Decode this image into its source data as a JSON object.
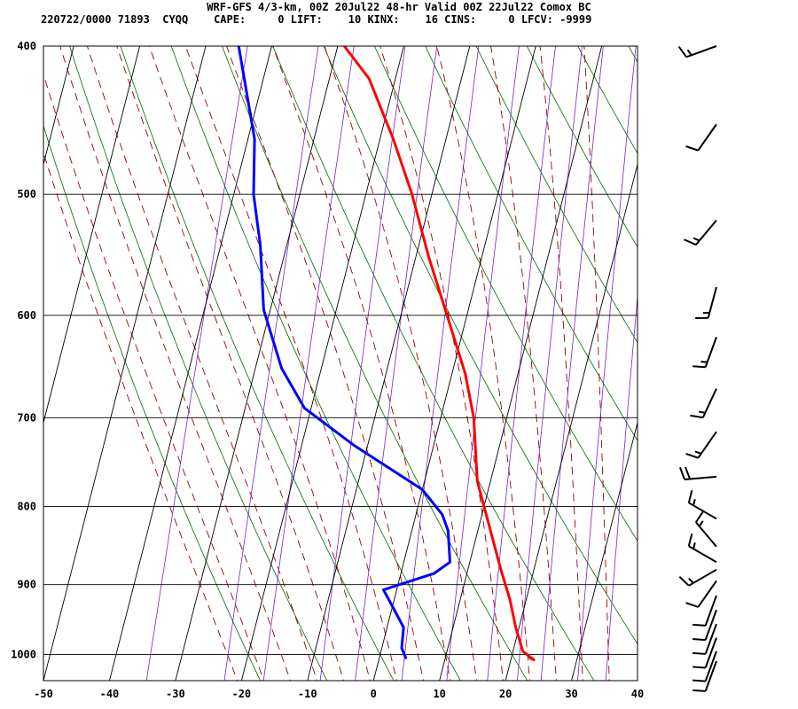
{
  "header": {
    "title": "WRF-GFS 4/3-km, 00Z 20Jul22 48-hr Valid 00Z 22Jul22 Comox BC",
    "info": "220722/0000 71893  CYQQ    CAPE:     0 LIFT:    10 KINX:    16 CINS:     0 LFCV: -9999"
  },
  "chart_data": {
    "type": "line",
    "chart_kind": "skew-T log-P sounding",
    "xlim": [
      -50,
      40
    ],
    "plim": [
      1040,
      400
    ],
    "y_scale": "log",
    "grid": true,
    "x_ticks": [
      "-50",
      "-40",
      "-30",
      "-20",
      "-10",
      "0",
      "10",
      "20",
      "30",
      "40"
    ],
    "x_tick_values": [
      -50,
      -40,
      -30,
      -20,
      -10,
      0,
      10,
      20,
      30,
      40
    ],
    "p_ticks": [
      "400",
      "500",
      "600",
      "700",
      "800",
      "900",
      "1000"
    ],
    "p_tick_values": [
      400,
      500,
      600,
      700,
      800,
      900,
      1000
    ],
    "colors": {
      "temperature": "#ff0000",
      "dewpoint": "#0000ff",
      "dry_adiabat": "#006600",
      "moist_adiabat": "#990000",
      "mixing_ratio": "#7b20c8",
      "grid": "#000000"
    },
    "series": [
      {
        "id": "temperature",
        "points": [
          [
            22.8,
            1005
          ],
          [
            23.5,
            1008
          ],
          [
            21.5,
            995
          ],
          [
            19.5,
            960
          ],
          [
            17.5,
            920
          ],
          [
            15,
            880
          ],
          [
            10,
            800
          ],
          [
            8,
            770
          ],
          [
            5,
            700
          ],
          [
            2,
            655
          ],
          [
            -3,
            600
          ],
          [
            -8,
            550
          ],
          [
            -13,
            500
          ],
          [
            -18,
            460
          ],
          [
            -24,
            420
          ],
          [
            -29,
            400
          ]
        ]
      },
      {
        "id": "dewpoint",
        "points": [
          [
            4,
            1005
          ],
          [
            3,
            990
          ],
          [
            2.5,
            960
          ],
          [
            0,
            930
          ],
          [
            -2,
            907
          ],
          [
            5,
            885
          ],
          [
            7,
            870
          ],
          [
            5.5,
            830
          ],
          [
            4,
            810
          ],
          [
            0,
            780
          ],
          [
            -12,
            730
          ],
          [
            -21,
            690
          ],
          [
            -26,
            650
          ],
          [
            -31,
            595
          ],
          [
            -34,
            540
          ],
          [
            -37,
            500
          ],
          [
            -39,
            460
          ],
          [
            -45,
            400
          ]
        ]
      }
    ],
    "wind_barbs": [
      {
        "p": 400,
        "dir_deg": 250,
        "speed_kt": 15
      },
      {
        "p": 450,
        "dir_deg": 215,
        "speed_kt": 10
      },
      {
        "p": 520,
        "dir_deg": 220,
        "speed_kt": 15
      },
      {
        "p": 575,
        "dir_deg": 195,
        "speed_kt": 15
      },
      {
        "p": 620,
        "dir_deg": 200,
        "speed_kt": 15
      },
      {
        "p": 670,
        "dir_deg": 205,
        "speed_kt": 15
      },
      {
        "p": 715,
        "dir_deg": 215,
        "speed_kt": 15
      },
      {
        "p": 765,
        "dir_deg": 265,
        "speed_kt": 20
      },
      {
        "p": 815,
        "dir_deg": 300,
        "speed_kt": 15
      },
      {
        "p": 850,
        "dir_deg": 320,
        "speed_kt": 15
      },
      {
        "p": 870,
        "dir_deg": 300,
        "speed_kt": 15
      },
      {
        "p": 880,
        "dir_deg": 240,
        "speed_kt": 15
      },
      {
        "p": 895,
        "dir_deg": 215,
        "speed_kt": 10
      },
      {
        "p": 915,
        "dir_deg": 200,
        "speed_kt": 10
      },
      {
        "p": 935,
        "dir_deg": 200,
        "speed_kt": 10
      },
      {
        "p": 955,
        "dir_deg": 200,
        "speed_kt": 10
      },
      {
        "p": 975,
        "dir_deg": 200,
        "speed_kt": 10
      },
      {
        "p": 995,
        "dir_deg": 200,
        "speed_kt": 10
      },
      {
        "p": 1010,
        "dir_deg": 200,
        "speed_kt": 10
      }
    ]
  }
}
